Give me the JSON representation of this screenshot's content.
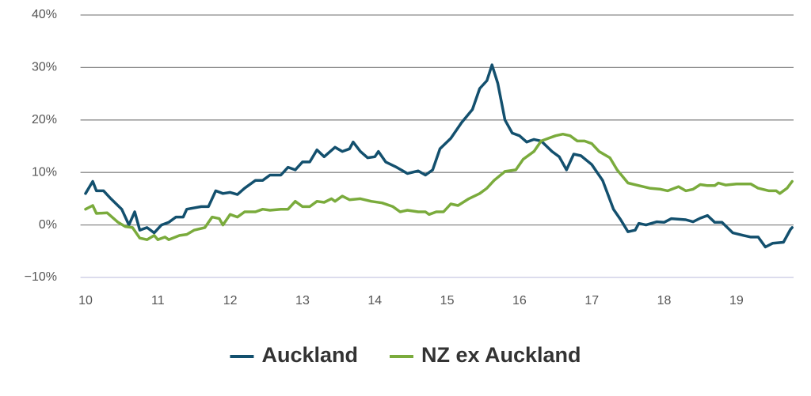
{
  "chart_data": {
    "type": "line",
    "xlim": [
      9.93,
      19.79
    ],
    "xticks": [
      10,
      11,
      12,
      13,
      14,
      15,
      16,
      17,
      18,
      19
    ],
    "ylim": [
      -10,
      40
    ],
    "yticks": [
      {
        "value": -10,
        "label": "−10%"
      },
      {
        "value": 0,
        "label": "0%"
      },
      {
        "value": 10,
        "label": "10%"
      },
      {
        "value": 20,
        "label": "20%"
      },
      {
        "value": 30,
        "label": "30%"
      },
      {
        "value": 40,
        "label": "40%"
      }
    ],
    "grid": true,
    "legend": "bottom",
    "series": [
      {
        "name": "Auckland",
        "color": "#13506e",
        "x": [
          10.0,
          10.1,
          10.15,
          10.25,
          10.35,
          10.5,
          10.6,
          10.68,
          10.75,
          10.85,
          10.95,
          11.05,
          11.15,
          11.25,
          11.35,
          11.4,
          11.6,
          11.7,
          11.8,
          11.9,
          12.0,
          12.1,
          12.2,
          12.35,
          12.45,
          12.55,
          12.7,
          12.8,
          12.9,
          13.0,
          13.1,
          13.2,
          13.3,
          13.45,
          13.55,
          13.65,
          13.7,
          13.8,
          13.9,
          14.0,
          14.05,
          14.15,
          14.3,
          14.45,
          14.6,
          14.7,
          14.8,
          14.9,
          15.05,
          15.2,
          15.35,
          15.45,
          15.55,
          15.62,
          15.7,
          15.8,
          15.9,
          16.0,
          16.1,
          16.2,
          16.3,
          16.45,
          16.55,
          16.65,
          16.75,
          16.85,
          17.0,
          17.15,
          17.3,
          17.4,
          17.5,
          17.6,
          17.65,
          17.75,
          17.9,
          18.0,
          18.1,
          18.3,
          18.4,
          18.5,
          18.6,
          18.7,
          18.8,
          18.95,
          19.1,
          19.2,
          19.3,
          19.4,
          19.5,
          19.65,
          19.75,
          19.77
        ],
        "values": [
          6,
          8.3,
          6.5,
          6.5,
          5,
          3,
          0,
          2.5,
          -1,
          -0.5,
          -1.5,
          0,
          0.5,
          1.5,
          1.5,
          3,
          3.5,
          3.5,
          6.5,
          6,
          6.2,
          5.8,
          7,
          8.5,
          8.5,
          9.5,
          9.5,
          11,
          10.5,
          12,
          12,
          14.3,
          13,
          14.8,
          14,
          14.5,
          15.8,
          14,
          12.8,
          13,
          14,
          12,
          11,
          9.8,
          10.3,
          9.5,
          10.5,
          14.5,
          16.5,
          19.5,
          22,
          26,
          27.5,
          30.5,
          27,
          20,
          17.5,
          17,
          15.8,
          16.3,
          16,
          14,
          13,
          10.5,
          13.5,
          13.2,
          11.5,
          8.5,
          3,
          1,
          -1.3,
          -1,
          0.3,
          0,
          0.6,
          0.5,
          1.2,
          1,
          0.6,
          1.3,
          1.8,
          0.5,
          0.5,
          -1.5,
          -2,
          -2.3,
          -2.3,
          -4.2,
          -3.5,
          -3.3,
          -0.8,
          -0.5
        ]
      },
      {
        "name": "NZ ex Auckland",
        "color": "#7aab3c",
        "x": [
          10.0,
          10.1,
          10.15,
          10.3,
          10.45,
          10.55,
          10.65,
          10.75,
          10.85,
          10.95,
          11.0,
          11.1,
          11.15,
          11.3,
          11.4,
          11.5,
          11.65,
          11.75,
          11.85,
          11.9,
          12.0,
          12.1,
          12.2,
          12.35,
          12.45,
          12.55,
          12.7,
          12.8,
          12.9,
          13.0,
          13.1,
          13.2,
          13.3,
          13.4,
          13.45,
          13.55,
          13.65,
          13.8,
          13.95,
          14.1,
          14.25,
          14.35,
          14.45,
          14.6,
          14.7,
          14.75,
          14.85,
          14.95,
          15.05,
          15.15,
          15.3,
          15.45,
          15.55,
          15.65,
          15.8,
          15.95,
          16.05,
          16.2,
          16.3,
          16.4,
          16.5,
          16.6,
          16.7,
          16.8,
          16.9,
          17.0,
          17.1,
          17.25,
          17.35,
          17.5,
          17.65,
          17.8,
          17.95,
          18.05,
          18.2,
          18.3,
          18.4,
          18.5,
          18.6,
          18.7,
          18.75,
          18.85,
          19.0,
          19.2,
          19.3,
          19.45,
          19.55,
          19.6,
          19.7,
          19.77
        ],
        "values": [
          3,
          3.7,
          2.2,
          2.3,
          0.5,
          -0.3,
          -0.5,
          -2.5,
          -2.8,
          -2,
          -2.8,
          -2.3,
          -2.8,
          -2,
          -1.8,
          -1,
          -0.5,
          1.5,
          1.2,
          0,
          2,
          1.5,
          2.5,
          2.5,
          3,
          2.8,
          3,
          3,
          4.5,
          3.5,
          3.5,
          4.5,
          4.3,
          5,
          4.5,
          5.5,
          4.8,
          5,
          4.5,
          4.2,
          3.5,
          2.5,
          2.8,
          2.5,
          2.5,
          2,
          2.5,
          2.5,
          4,
          3.7,
          5,
          6,
          7,
          8.5,
          10.2,
          10.5,
          12.5,
          14,
          16,
          16.5,
          17,
          17.3,
          17,
          16,
          16,
          15.5,
          14,
          12.8,
          10.5,
          8,
          7.5,
          7,
          6.8,
          6.5,
          7.3,
          6.5,
          6.8,
          7.7,
          7.5,
          7.5,
          8,
          7.6,
          7.8,
          7.8,
          7,
          6.5,
          6.5,
          6,
          7,
          8.3
        ]
      }
    ]
  }
}
